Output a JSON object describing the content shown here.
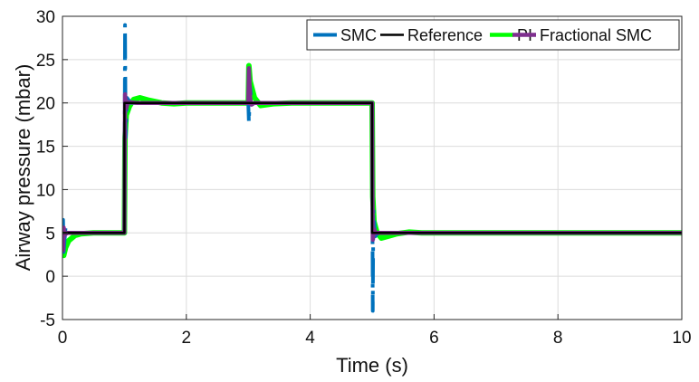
{
  "chart_data": {
    "type": "line",
    "xlabel": "Time (s)",
    "ylabel": "Airway pressure (mbar)",
    "xlim": [
      0,
      10
    ],
    "ylim": [
      -5,
      30
    ],
    "x_ticks": [
      "0",
      "2",
      "4",
      "6",
      "8",
      "10"
    ],
    "y_ticks": [
      "-5",
      "0",
      "5",
      "10",
      "15",
      "20",
      "25",
      "30"
    ],
    "grid": true,
    "legend_position": "top-right",
    "series": [
      {
        "name": "SMC",
        "color": "#0072BD",
        "style": "dash-dot",
        "x": [
          0,
          0.01,
          0.02,
          0.05,
          0.1,
          0.2,
          0.5,
          1.0,
          1.0,
          1.01,
          1.02,
          1.04,
          1.1,
          1.5,
          2.0,
          3.0,
          3.0,
          3.01,
          3.03,
          3.06,
          3.1,
          3.5,
          4.0,
          5.0,
          5.0,
          5.01,
          5.02,
          5.05,
          5.1,
          5.5,
          6.0,
          8.0,
          10.0
        ],
        "y": [
          5,
          6.5,
          2.8,
          5.6,
          5,
          5,
          5,
          5,
          5,
          29,
          16,
          20.6,
          20,
          20,
          20,
          20,
          20,
          17.8,
          21.8,
          19.8,
          20,
          20,
          20,
          20,
          20,
          -4,
          7.8,
          4.6,
          5,
          5,
          5,
          5,
          5
        ]
      },
      {
        "name": "Reference",
        "color": "#000000",
        "style": "solid",
        "x": [
          0,
          1,
          1,
          5,
          5,
          10
        ],
        "y": [
          5,
          5,
          20,
          20,
          5,
          5
        ]
      },
      {
        "name": "PI",
        "color": "#00FF00",
        "style": "solid",
        "x": [
          0,
          0.02,
          0.05,
          0.1,
          0.2,
          0.3,
          0.5,
          0.7,
          1.0,
          1.0,
          1.01,
          1.03,
          1.08,
          1.15,
          1.25,
          1.4,
          1.6,
          1.8,
          2.0,
          3.0,
          3.0,
          3.01,
          3.03,
          3.1,
          3.2,
          3.4,
          3.7,
          4.0,
          5.0,
          5.0,
          5.01,
          5.03,
          5.08,
          5.15,
          5.25,
          5.4,
          5.6,
          5.8,
          6.0,
          8.0,
          10.0
        ],
        "y": [
          5,
          2.4,
          3.3,
          4.1,
          4.7,
          4.9,
          5,
          5,
          5,
          5,
          16,
          18.6,
          19.6,
          20.4,
          20.6,
          20.3,
          20,
          19.9,
          20,
          20,
          20,
          24.3,
          22.5,
          20.6,
          19.7,
          19.9,
          20,
          20,
          20,
          20,
          9.2,
          6.3,
          5,
          4.4,
          4.6,
          4.9,
          5.1,
          5,
          5,
          5,
          5
        ]
      },
      {
        "name": "Fractional SMC",
        "color": "#7E2F8E",
        "style": "solid",
        "x": [
          0,
          0.01,
          0.02,
          0.04,
          0.08,
          0.2,
          1.0,
          1.0,
          1.01,
          1.03,
          1.06,
          1.2,
          2.0,
          3.0,
          3.0,
          3.01,
          3.03,
          3.05,
          3.1,
          4.0,
          5.0,
          5.0,
          5.01,
          5.03,
          5.06,
          5.2,
          6.0,
          10.0
        ],
        "y": [
          5,
          3.0,
          5.6,
          4.8,
          5,
          5,
          5,
          5,
          21,
          19.4,
          20.1,
          20,
          20,
          20,
          20,
          24,
          20.6,
          19.8,
          20,
          20,
          20,
          20,
          4.2,
          5.4,
          5,
          5,
          5,
          5
        ]
      }
    ]
  }
}
